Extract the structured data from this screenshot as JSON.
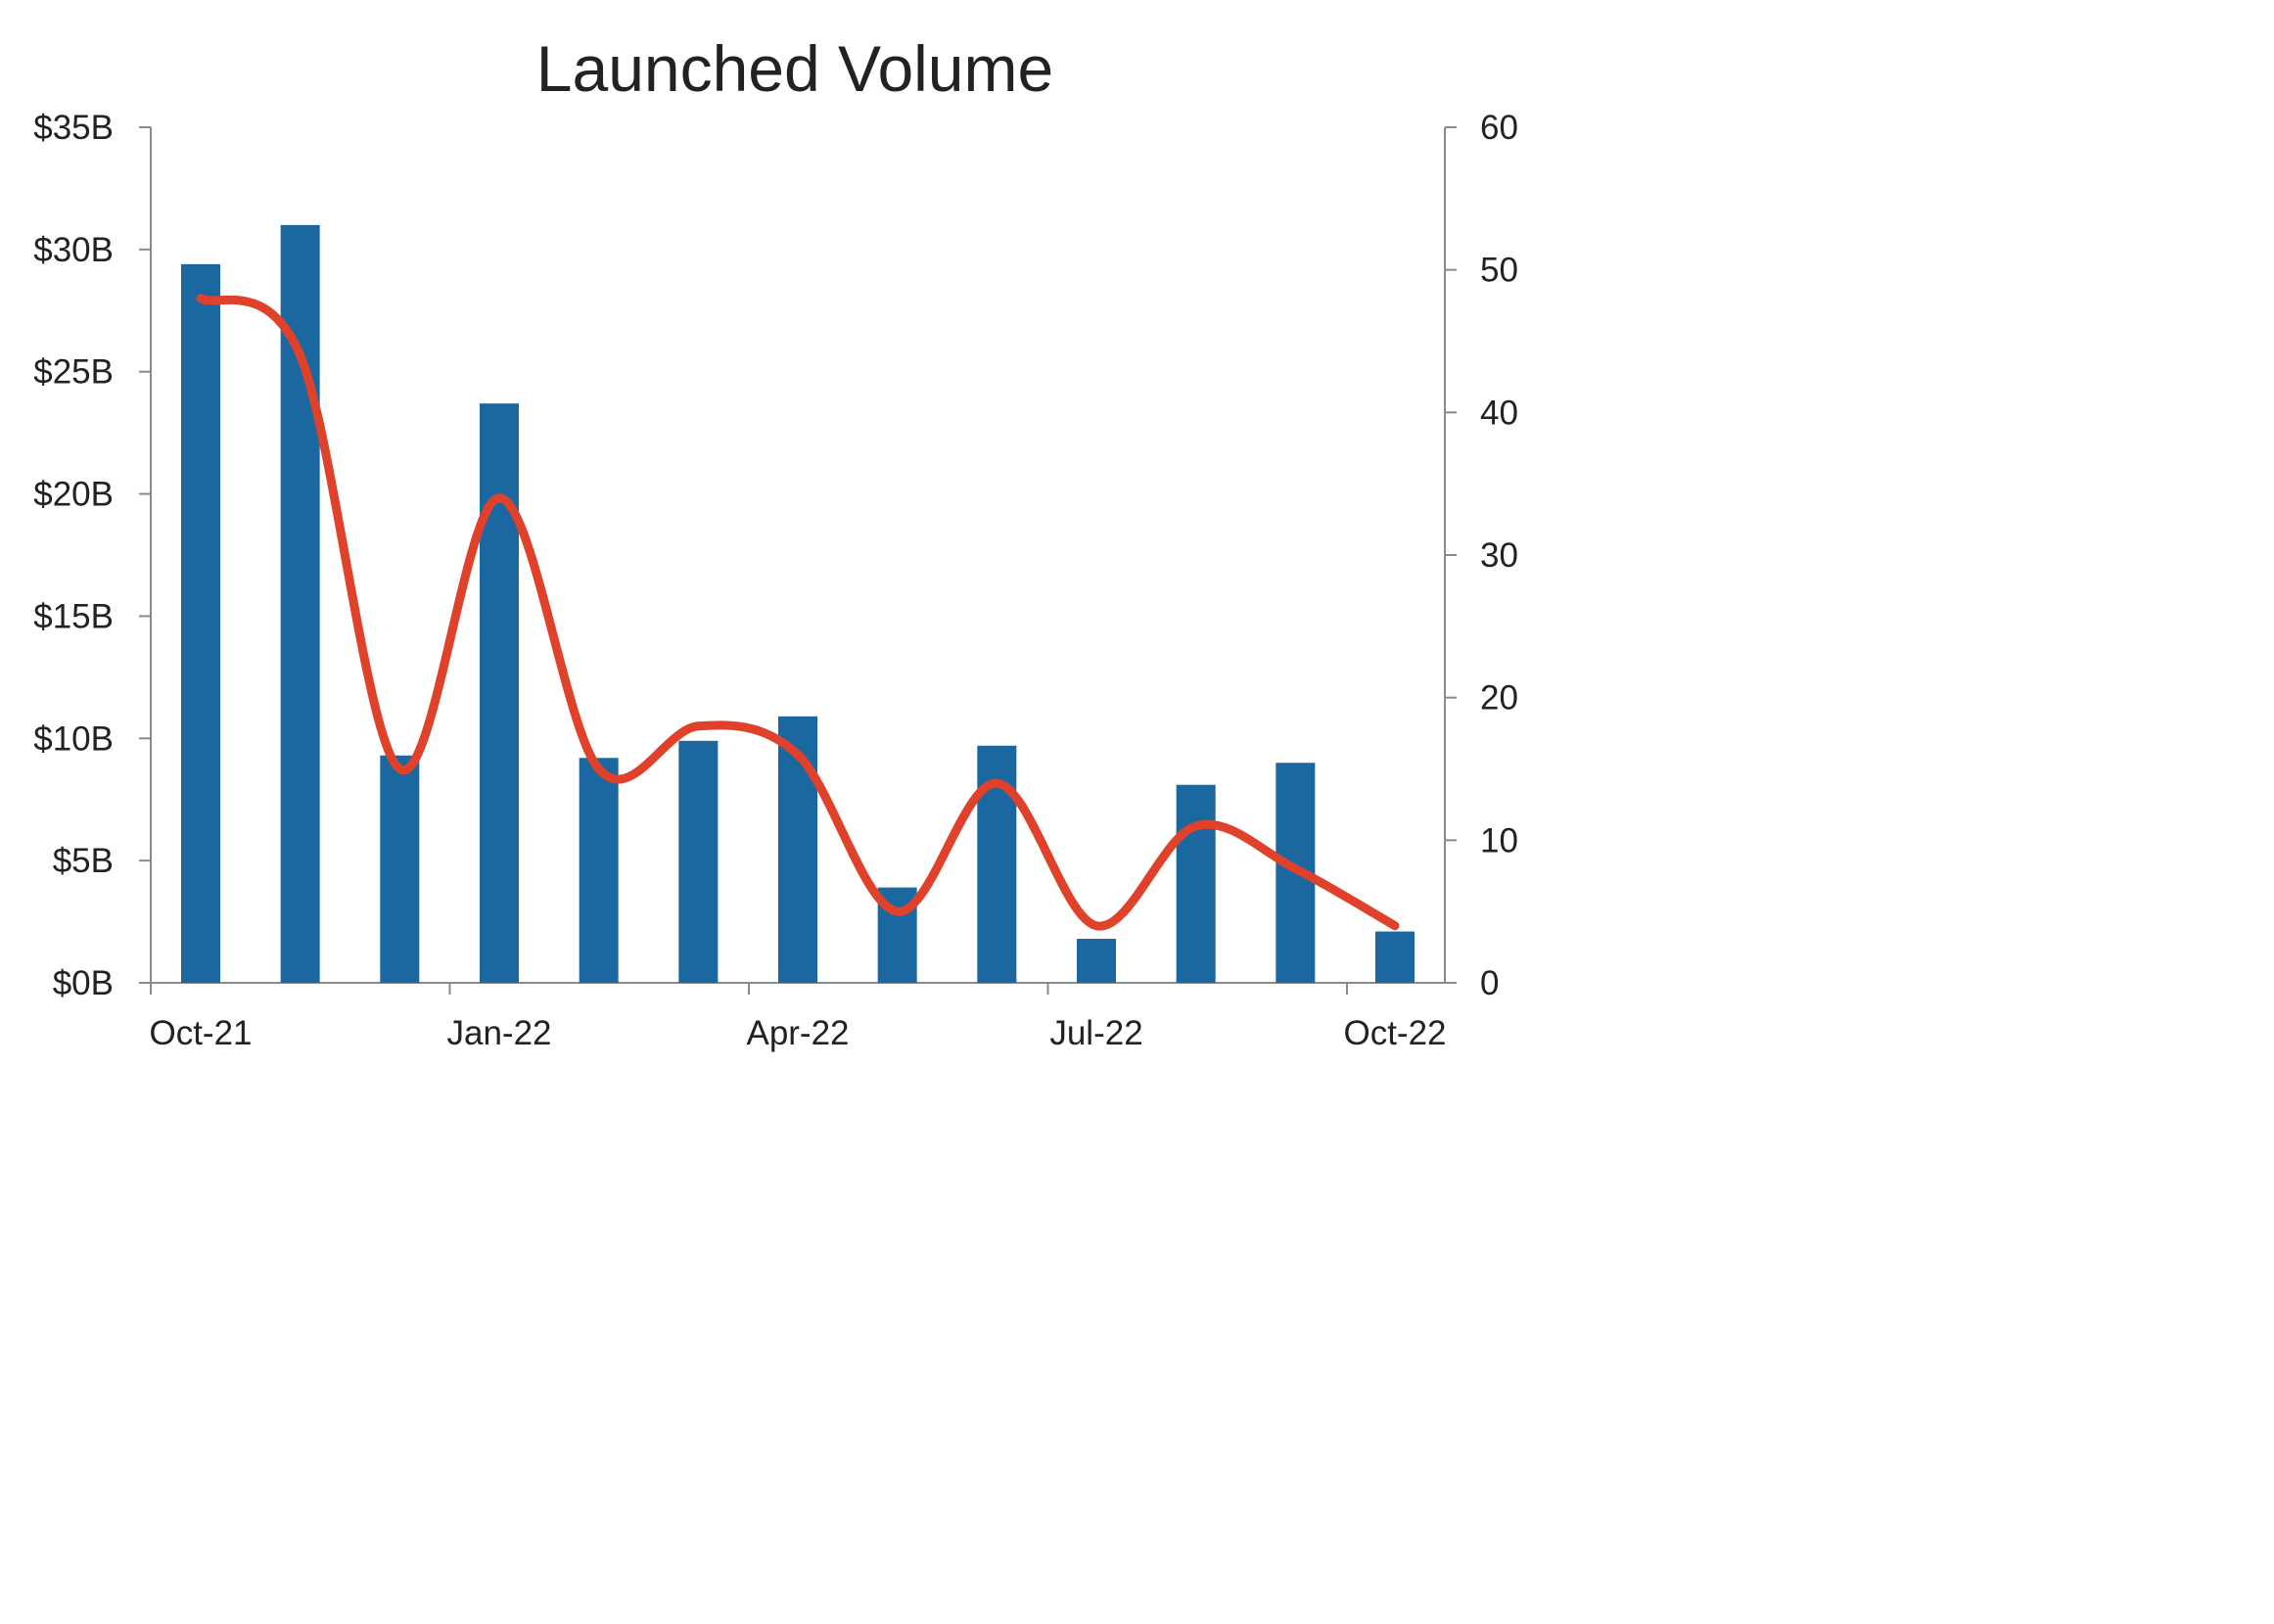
{
  "chart_data": {
    "type": "bar",
    "title": "Launched Volume",
    "xlabel": "",
    "ylabel": "",
    "categories": [
      "Oct-21",
      "Nov-21",
      "Dec-21",
      "Jan-22",
      "Feb-22",
      "Mar-22",
      "Apr-22",
      "May-22",
      "Jun-22",
      "Jul-22",
      "Aug-22",
      "Sep-22",
      "Oct-22"
    ],
    "x_tick_labels": [
      "Oct-21",
      "Jan-22",
      "Apr-22",
      "Jul-22",
      "Oct-22"
    ],
    "y_tick_labels": [
      "$0B",
      "$5B",
      "$10B",
      "$15B",
      "$20B",
      "$25B",
      "$30B",
      "$35B"
    ],
    "y2_tick_labels": [
      "0",
      "10",
      "20",
      "30",
      "40",
      "50",
      "60"
    ],
    "ylim": [
      0,
      35
    ],
    "y2lim": [
      0,
      60
    ],
    "grid": false,
    "legend": "none",
    "series": [
      {
        "type": "bar",
        "axis": "left",
        "unit": "$B",
        "color": "#1b67a0",
        "values": [
          29.4,
          31.0,
          9.3,
          23.7,
          9.2,
          9.9,
          10.9,
          3.9,
          9.7,
          1.8,
          8.1,
          9.0,
          2.1
        ]
      },
      {
        "type": "line",
        "axis": "right",
        "smooth": true,
        "color": "#e0412a",
        "values": [
          48,
          44,
          15,
          34,
          15,
          18,
          16,
          5,
          14,
          4,
          11,
          8,
          4
        ]
      }
    ]
  }
}
